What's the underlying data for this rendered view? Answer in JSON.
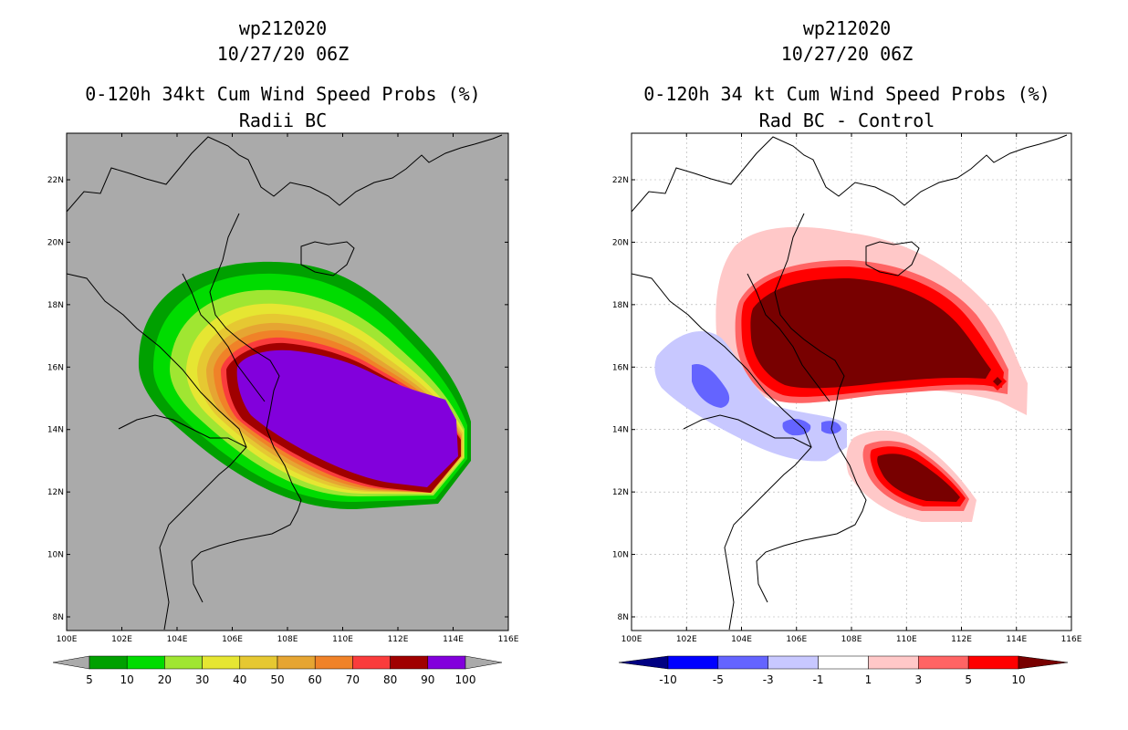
{
  "left_panel": {
    "title_lines": [
      "wp212020",
      "10/27/20 06Z",
      "0-120h 34kt Cum Wind Speed Probs (%)",
      "Radii BC"
    ],
    "colorbar": {
      "labels": [
        "5",
        "10",
        "20",
        "30",
        "40",
        "50",
        "60",
        "70",
        "80",
        "90",
        "100"
      ],
      "colors": [
        "#aaaaaa",
        "#00a000",
        "#00dc00",
        "#a0e632",
        "#e6e632",
        "#e6c832",
        "#e6a532",
        "#f08228",
        "#fa3c3c",
        "#a00000",
        "#8200dc",
        "#aaaaaa"
      ],
      "end_colors": {
        "low": "#aaaaaa",
        "high": "#aaaaaa"
      }
    },
    "background_color": "#aaaaaa"
  },
  "right_panel": {
    "title_lines": [
      "wp212020",
      "10/27/20 06Z",
      "0-120h 34 kt Cum Wind Speed Probs (%)",
      "Rad BC - Control"
    ],
    "colorbar": {
      "labels": [
        "-10",
        "-5",
        "-3",
        "-1",
        "1",
        "3",
        "5",
        "10"
      ],
      "colors": [
        "#000082",
        "#0000ff",
        "#6464ff",
        "#c8c8ff",
        "#ffffff",
        "#ffc8c8",
        "#ff6464",
        "#ff0000",
        "#780000"
      ],
      "end_colors": {
        "low": "#000082",
        "high": "#780000"
      }
    },
    "background_color": "#ffffff"
  },
  "axes": {
    "lon_labels": [
      "100E",
      "102E",
      "104E",
      "106E",
      "108E",
      "110E",
      "112E",
      "114E",
      "116E"
    ],
    "lat_labels": [
      "8N",
      "10N",
      "12N",
      "14N",
      "16N",
      "18N",
      "20N",
      "22N"
    ]
  }
}
